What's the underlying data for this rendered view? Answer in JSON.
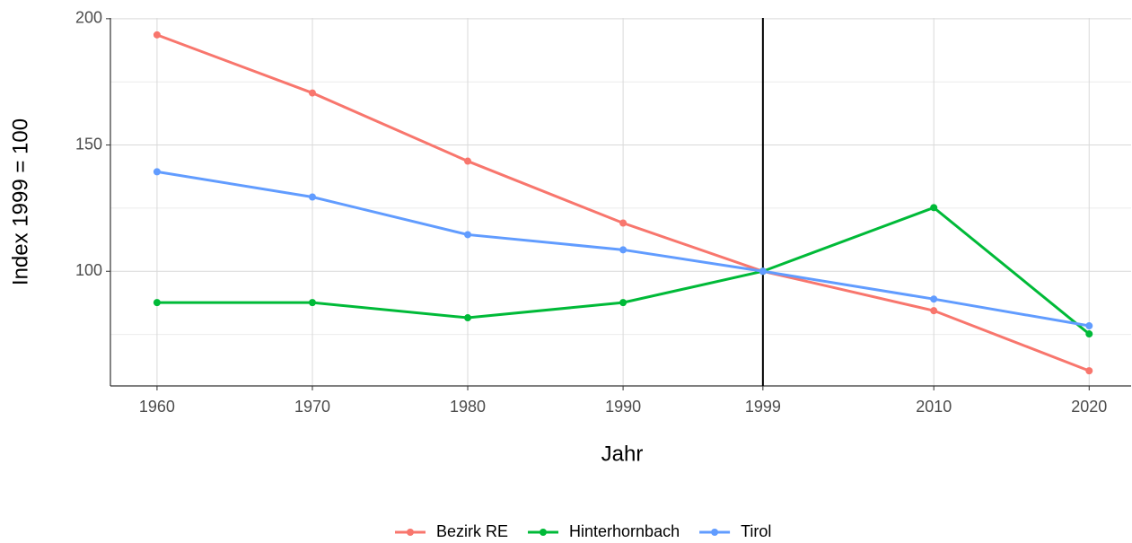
{
  "chart_data": {
    "type": "line",
    "x": [
      1960,
      1970,
      1980,
      1990,
      1999,
      2010,
      2020
    ],
    "series": [
      {
        "name": "Bezirk RE",
        "color": "#F8766D",
        "values": [
          193.6,
          170.6,
          143.6,
          119.1,
          100,
          84.4,
          60.6
        ]
      },
      {
        "name": "Hinterhornbach",
        "color": "#00BA38",
        "values": [
          87.6,
          87.6,
          81.6,
          87.6,
          100,
          125.2,
          75.2
        ]
      },
      {
        "name": "Tirol",
        "color": "#619CFF",
        "values": [
          139.4,
          129.4,
          114.5,
          108.5,
          100,
          89.0,
          78.4
        ]
      }
    ],
    "xlabel": "Jahr",
    "ylabel": "Index 1999 = 100",
    "xlim": [
      1957,
      2022.7
    ],
    "ylim": [
      54.6,
      200.3
    ],
    "xticks": [
      1960,
      1970,
      1980,
      1990,
      1999,
      2010,
      2020
    ],
    "yticks": [
      100,
      150,
      200
    ],
    "yminor": [
      75,
      125,
      175
    ],
    "vline": 1999,
    "grid": true,
    "legend": "bottom"
  }
}
